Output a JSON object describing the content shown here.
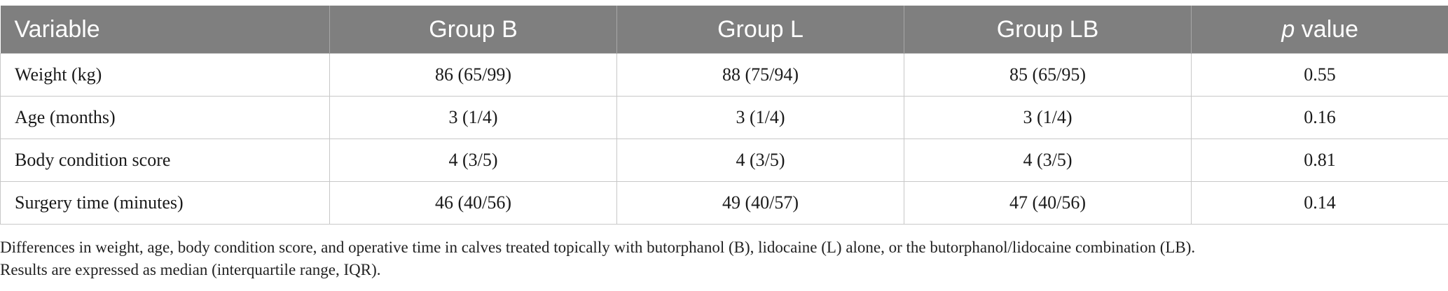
{
  "table": {
    "headers": {
      "variable": "Variable",
      "group_b": "Group B",
      "group_l": "Group L",
      "group_lb": "Group LB",
      "p_value_italic": "p",
      "p_value_rest": " value"
    },
    "rows": [
      {
        "variable": "Weight (kg)",
        "group_b": "86 (65/99)",
        "group_l": "88 (75/94)",
        "group_lb": "85 (65/95)",
        "p_value": "0.55"
      },
      {
        "variable": "Age (months)",
        "group_b": "3 (1/4)",
        "group_l": "3 (1/4)",
        "group_lb": "3 (1/4)",
        "p_value": "0.16"
      },
      {
        "variable": "Body condition score",
        "group_b": "4 (3/5)",
        "group_l": "4 (3/5)",
        "group_lb": "4 (3/5)",
        "p_value": "0.81"
      },
      {
        "variable": "Surgery time (minutes)",
        "group_b": "46 (40/56)",
        "group_l": "49 (40/57)",
        "group_lb": "47 (40/56)",
        "p_value": "0.14"
      }
    ]
  },
  "footnote": {
    "line1": "Differences in weight, age, body condition score, and operative time in calves treated topically with butorphanol (B), lidocaine (L) alone, or the butorphanol/lidocaine combination (LB).",
    "line2": "Results are expressed as median (interquartile range, IQR)."
  },
  "colors": {
    "header_bg": "#7f7f7f",
    "header_text": "#ffffff",
    "grid": "#c8c8c8"
  }
}
